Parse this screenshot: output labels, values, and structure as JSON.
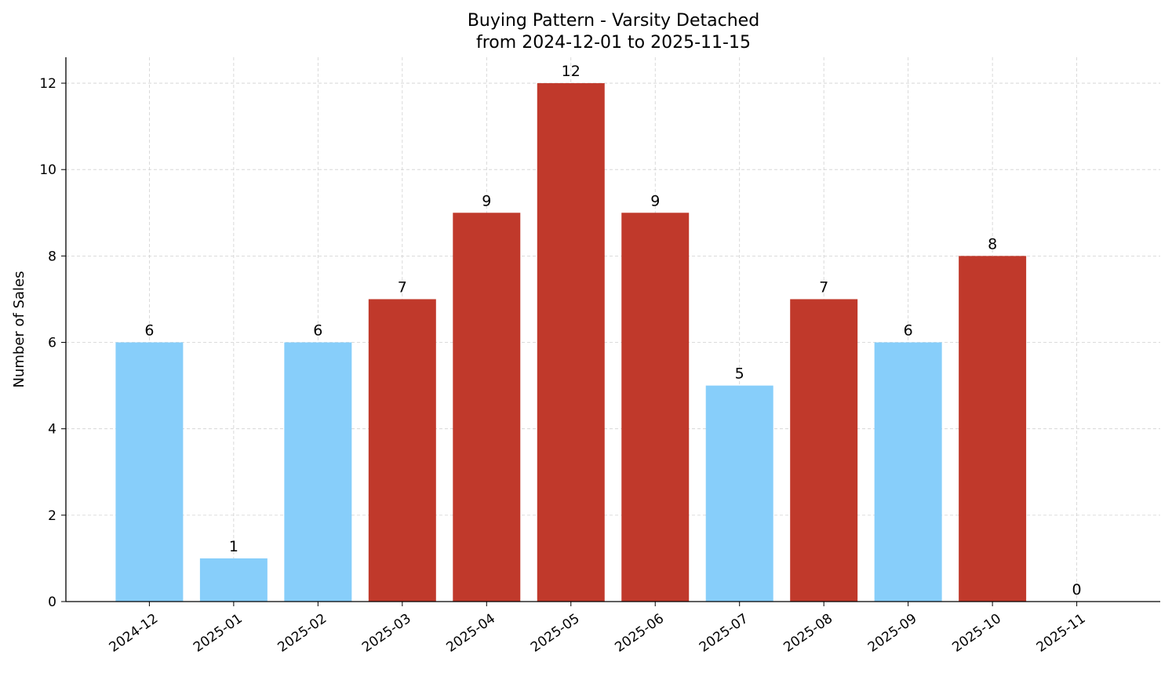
{
  "chart_data": {
    "type": "bar",
    "title": "Buying Pattern - Varsity Detached",
    "subtitle": "from 2024-12-01 to 2025-11-15",
    "xlabel": "",
    "ylabel": "Number of Sales",
    "categories": [
      "2024-12",
      "2025-01",
      "2025-02",
      "2025-03",
      "2025-04",
      "2025-05",
      "2025-06",
      "2025-07",
      "2025-08",
      "2025-09",
      "2025-10",
      "2025-11"
    ],
    "values": [
      6,
      1,
      6,
      7,
      9,
      12,
      9,
      5,
      7,
      6,
      8,
      0
    ],
    "bar_colors": [
      "#87CEFA",
      "#87CEFA",
      "#87CEFA",
      "#C0392B",
      "#C0392B",
      "#C0392B",
      "#C0392B",
      "#87CEFA",
      "#C0392B",
      "#87CEFA",
      "#C0392B",
      "#87CEFA"
    ],
    "ylim": [
      0,
      12.6
    ],
    "yticks": [
      0,
      2,
      4,
      6,
      8,
      10,
      12
    ],
    "grid": true,
    "data_labels": true
  }
}
